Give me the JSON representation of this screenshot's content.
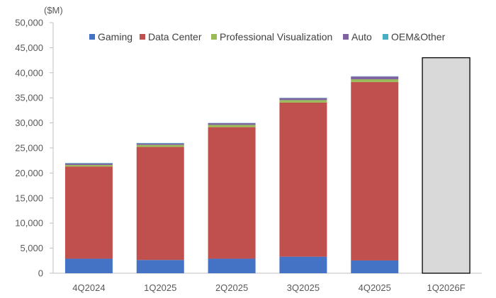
{
  "chart_data": {
    "type": "bar",
    "stacked": true,
    "unit_label": "($M)",
    "categories": [
      "4Q2024",
      "1Q2025",
      "2Q2025",
      "3Q2025",
      "4Q2025",
      "1Q2026F"
    ],
    "ylim": [
      0,
      50000
    ],
    "yticks": [
      0,
      5000,
      10000,
      15000,
      20000,
      25000,
      30000,
      35000,
      40000,
      45000,
      50000
    ],
    "ytick_labels": [
      "0",
      "5,000",
      "10,000",
      "15,000",
      "20,000",
      "25,000",
      "30,000",
      "35,000",
      "40,000",
      "45,000",
      "50,000"
    ],
    "legend_position": "top",
    "grid": false,
    "series": [
      {
        "name": "Gaming",
        "color": "#4472C4",
        "values": [
          2900,
          2650,
          2900,
          3300,
          2550,
          null
        ]
      },
      {
        "name": "Data Center",
        "color": "#C0504D",
        "values": [
          18400,
          22550,
          26250,
          30750,
          35600,
          null
        ]
      },
      {
        "name": "Professional Visualization",
        "color": "#9BBB59",
        "values": [
          300,
          400,
          450,
          500,
          550,
          null
        ]
      },
      {
        "name": "Auto",
        "color": "#8064A2",
        "values": [
          300,
          300,
          350,
          400,
          550,
          null
        ]
      },
      {
        "name": "OEM&Other",
        "color": "#4BACC6",
        "values": [
          100,
          100,
          50,
          50,
          50,
          null
        ]
      }
    ],
    "forecast": {
      "category": "1Q2026F",
      "value": 43000,
      "color": "#D9D9D9",
      "border": "#000000"
    }
  }
}
